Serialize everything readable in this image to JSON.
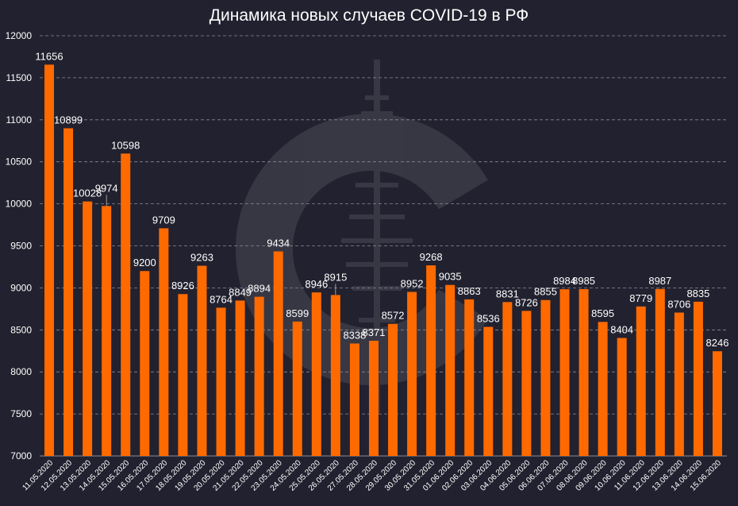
{
  "chart_data": {
    "type": "bar",
    "title": "Динамика новых случаев COVID-19 в РФ",
    "xlabel": "",
    "ylabel": "",
    "ylim": [
      7000,
      12000
    ],
    "yticks": [
      7000,
      7500,
      8000,
      8500,
      9000,
      9500,
      10000,
      10500,
      11000,
      11500,
      12000
    ],
    "grid": "horizontal dashed",
    "categories": [
      "11.05.2020",
      "12.05.2020",
      "13.05.2020",
      "14.05.2020",
      "15.05.2020",
      "16.05.2020",
      "17.05.2020",
      "18.05.2020",
      "19.05.2020",
      "20.05.2020",
      "21.05.2020",
      "22.05.2020",
      "23.05.2020",
      "24.05.2020",
      "25.05.2020",
      "26.05.2020",
      "27.05.2020",
      "28.05.2020",
      "29.05.2020",
      "30.05.2020",
      "31.05.2020",
      "01.06.2020",
      "02.06.2020",
      "03.06.2020",
      "04.06.2020",
      "05.06.2020",
      "06.06.2020",
      "07.06.2020",
      "08.06.2020",
      "09.06.2020",
      "10.06.2020",
      "11.06.2020",
      "12.06.2020",
      "13.06.2020",
      "14.06.2020",
      "15.06.2020"
    ],
    "values": [
      11656,
      10899,
      10028,
      9974,
      10598,
      9200,
      9709,
      8926,
      9263,
      8764,
      8849,
      8894,
      9434,
      8599,
      8946,
      8915,
      8338,
      8371,
      8572,
      8952,
      9268,
      9035,
      8863,
      8536,
      8831,
      8726,
      8855,
      8984,
      8985,
      8595,
      8404,
      8779,
      8987,
      8706,
      8835,
      8246
    ],
    "bar_color": "#ff6a00",
    "label_color": "#ffffff",
    "background_color": "#22212f"
  }
}
